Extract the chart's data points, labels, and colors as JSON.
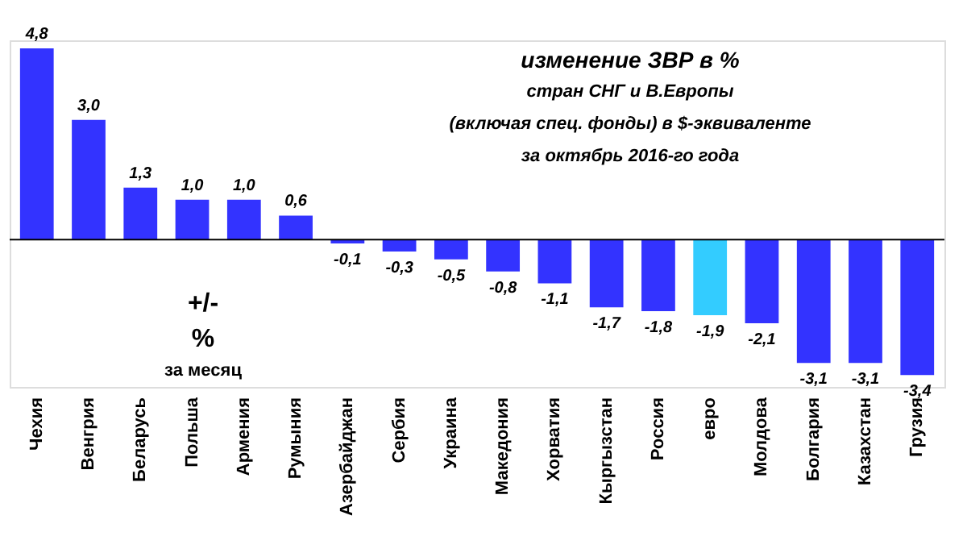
{
  "chart_data": {
    "type": "bar",
    "title": "изменение  ЗВР в %",
    "subtitle": "стран СНГ и В.Европы\n(включая спец. фонды) в $-эквиваленте\nза октябрь 2016-го года",
    "categories": [
      "Чехия",
      "Венгрия",
      "Беларусь",
      "Польша",
      "Армения",
      "Румыния",
      "Азербайджан",
      "Сербия",
      "Украина",
      "Македония",
      "Хорватия",
      "Кыргызстан",
      "Россия",
      "евро",
      "Молдова",
      "Болгария",
      "Казахстан",
      "Грузия"
    ],
    "values": [
      4.8,
      3.0,
      1.3,
      1.0,
      1.0,
      0.6,
      -0.1,
      -0.3,
      -0.5,
      -0.8,
      -1.1,
      -1.7,
      -1.8,
      -1.9,
      -2.1,
      -3.1,
      -3.1,
      -3.4
    ],
    "colors": [
      "#3333ff",
      "#3333ff",
      "#3333ff",
      "#3333ff",
      "#3333ff",
      "#3333ff",
      "#3333ff",
      "#3333ff",
      "#3333ff",
      "#3333ff",
      "#3333ff",
      "#3333ff",
      "#3333ff",
      "#33ccff",
      "#3333ff",
      "#3333ff",
      "#3333ff",
      "#3333ff"
    ],
    "value_labels": [
      "4,8",
      "3,0",
      "1,3",
      "1,0",
      "1,0",
      "0,6",
      "-0,1",
      "-0,3",
      "-0,5",
      "-0,8",
      "-1,1",
      "-1,7",
      "-1,8",
      "-1,9",
      "-2,1",
      "-3,1",
      "-3,1",
      "-3,4"
    ],
    "ylim": [
      -3.7,
      5.0
    ],
    "annotations": [
      "+/-",
      "%",
      "за месяц"
    ],
    "ref_lines": [
      {
        "axis": "y",
        "value": 0,
        "color": "#000000"
      }
    ],
    "tick_labels": "x",
    "grid": false
  }
}
